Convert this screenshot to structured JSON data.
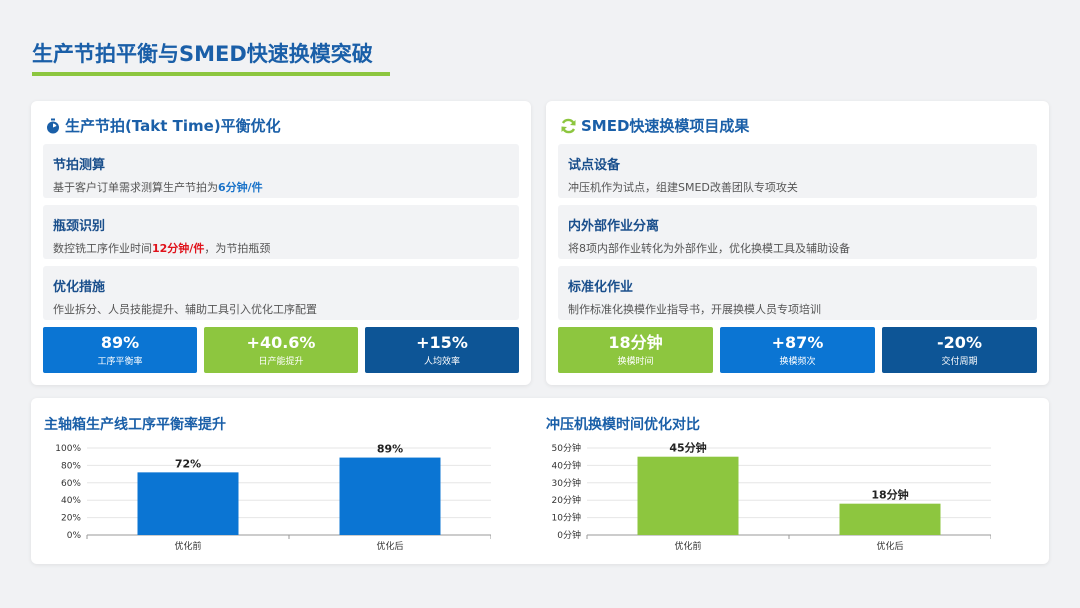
{
  "header": {
    "title": "生产节拍平衡与SMED快速换模突破"
  },
  "left_card": {
    "title": "生产节拍(Takt Time)平衡优化",
    "icon": "stopwatch-icon",
    "items": [
      {
        "title": "节拍测算",
        "desc_before": "基于客户订单需求测算生产节拍为",
        "highlight": "6分钟/件",
        "desc_after": ""
      },
      {
        "title": "瓶颈识别",
        "desc_before": "数控铣工序作业时间",
        "highlight": "12分钟/件",
        "desc_after": "，为节拍瓶颈"
      },
      {
        "title": "优化措施",
        "desc_before": "作业拆分、人员技能提升、辅助工具引入优化工序配置",
        "highlight": "",
        "desc_after": ""
      }
    ],
    "stats": [
      {
        "value": "89%",
        "label": "工序平衡率",
        "color": "#0b75d3"
      },
      {
        "value": "+40.6%",
        "label": "日产能提升",
        "color": "#8dc63f"
      },
      {
        "value": "+15%",
        "label": "人均效率",
        "color": "#0d5596"
      }
    ]
  },
  "right_card": {
    "title": "SMED快速换模项目成果",
    "icon": "refresh-icon",
    "items": [
      {
        "title": "试点设备",
        "desc": "冲压机作为试点，组建SMED改善团队专项攻关"
      },
      {
        "title": "内外部作业分离",
        "desc": "将8项内部作业转化为外部作业，优化换模工具及辅助设备"
      },
      {
        "title": "标准化作业",
        "desc": "制作标准化换模作业指导书，开展换模人员专项培训"
      }
    ],
    "stats": [
      {
        "value": "18分钟",
        "label": "换模时间",
        "color": "#8dc63f"
      },
      {
        "value": "+87%",
        "label": "换模频次",
        "color": "#0b75d3"
      },
      {
        "value": "-20%",
        "label": "交付周期",
        "color": "#0d5596"
      }
    ]
  },
  "chart_data": [
    {
      "type": "bar",
      "title": "主轴箱生产线工序平衡率提升",
      "categories": [
        "优化前",
        "优化后"
      ],
      "values": [
        72,
        89
      ],
      "value_labels": [
        "72%",
        "89%"
      ],
      "yticks": [
        "0%",
        "20%",
        "40%",
        "60%",
        "80%",
        "100%"
      ],
      "ylim": [
        0,
        100
      ],
      "color": "#0b75d3",
      "grid": true
    },
    {
      "type": "bar",
      "title": "冲压机换模时间优化对比",
      "categories": [
        "优化前",
        "优化后"
      ],
      "values": [
        45,
        18
      ],
      "value_labels": [
        "45分钟",
        "18分钟"
      ],
      "yticks": [
        "0分钟",
        "10分钟",
        "20分钟",
        "30分钟",
        "40分钟",
        "50分钟"
      ],
      "ylim": [
        0,
        50
      ],
      "color": "#8dc63f",
      "grid": true
    }
  ]
}
